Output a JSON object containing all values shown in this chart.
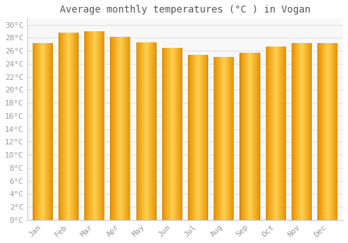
{
  "title": "Average monthly temperatures (°C ) in Vogan",
  "months": [
    "Jan",
    "Feb",
    "Mar",
    "Apr",
    "May",
    "Jun",
    "Jul",
    "Aug",
    "Sep",
    "Oct",
    "Nov",
    "Dec"
  ],
  "values": [
    27.2,
    28.8,
    29.0,
    28.2,
    27.3,
    26.4,
    25.4,
    25.1,
    25.7,
    26.7,
    27.2,
    27.2
  ],
  "bar_color_bright": "#FFD060",
  "bar_color_dark": "#E89000",
  "bar_edge_color": "#CC8800",
  "yticks": [
    0,
    2,
    4,
    6,
    8,
    10,
    12,
    14,
    16,
    18,
    20,
    22,
    24,
    26,
    28,
    30
  ],
  "ylim": [
    0,
    31
  ],
  "background_color": "#FFFFFF",
  "plot_bg_color": "#F8F8F8",
  "grid_color": "#E0E0E8",
  "title_fontsize": 10,
  "tick_fontsize": 8,
  "bar_width": 0.78
}
